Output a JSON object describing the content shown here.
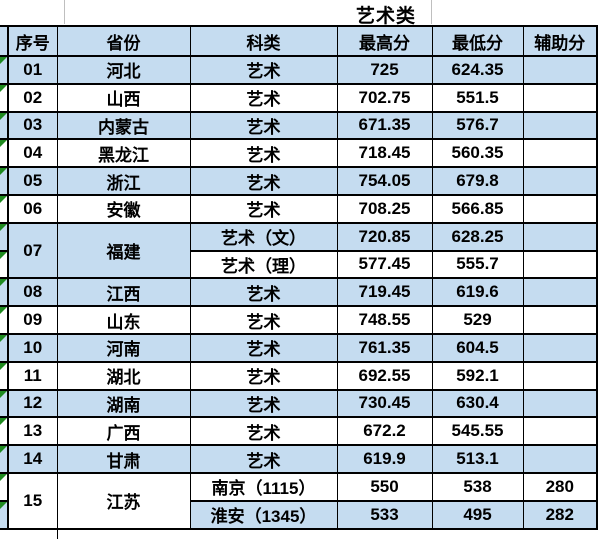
{
  "title": "艺术类",
  "columns": [
    "序号",
    "省份",
    "科类",
    "最高分",
    "最低分",
    "辅助分"
  ],
  "colors": {
    "row_blue": "#c5dcf0",
    "row_white": "#ffffff",
    "border_black": "#000000",
    "triangle_green": "#1f8a1f",
    "gridline_gray": "#bfbfbf"
  },
  "rows": [
    {
      "no": "01",
      "province": "河北",
      "subs": [
        {
          "category": "艺术",
          "high": "725",
          "low": "624.35",
          "aux": "",
          "shade": "blue"
        }
      ]
    },
    {
      "no": "02",
      "province": "山西",
      "subs": [
        {
          "category": "艺术",
          "high": "702.75",
          "low": "551.5",
          "aux": "",
          "shade": "white"
        }
      ]
    },
    {
      "no": "03",
      "province": "内蒙古",
      "subs": [
        {
          "category": "艺术",
          "high": "671.35",
          "low": "576.7",
          "aux": "",
          "shade": "blue"
        }
      ]
    },
    {
      "no": "04",
      "province": "黑龙江",
      "subs": [
        {
          "category": "艺术",
          "high": "718.45",
          "low": "560.35",
          "aux": "",
          "shade": "white"
        }
      ]
    },
    {
      "no": "05",
      "province": "浙江",
      "subs": [
        {
          "category": "艺术",
          "high": "754.05",
          "low": "679.8",
          "aux": "",
          "shade": "blue"
        }
      ]
    },
    {
      "no": "06",
      "province": "安徽",
      "subs": [
        {
          "category": "艺术",
          "high": "708.25",
          "low": "566.85",
          "aux": "",
          "shade": "white"
        }
      ]
    },
    {
      "no": "07",
      "province": "福建",
      "subs": [
        {
          "category": "艺术（文）",
          "high": "720.85",
          "low": "628.25",
          "aux": "",
          "shade": "blue"
        },
        {
          "category": "艺术（理）",
          "high": "577.45",
          "low": "555.7",
          "aux": "",
          "shade": "white"
        }
      ]
    },
    {
      "no": "08",
      "province": "江西",
      "subs": [
        {
          "category": "艺术",
          "high": "719.45",
          "low": "619.6",
          "aux": "",
          "shade": "blue"
        }
      ]
    },
    {
      "no": "09",
      "province": "山东",
      "subs": [
        {
          "category": "艺术",
          "high": "748.55",
          "low": "529",
          "aux": "",
          "shade": "white"
        }
      ]
    },
    {
      "no": "10",
      "province": "河南",
      "subs": [
        {
          "category": "艺术",
          "high": "761.35",
          "low": "604.5",
          "aux": "",
          "shade": "blue"
        }
      ]
    },
    {
      "no": "11",
      "province": "湖北",
      "subs": [
        {
          "category": "艺术",
          "high": "692.55",
          "low": "592.1",
          "aux": "",
          "shade": "white"
        }
      ]
    },
    {
      "no": "12",
      "province": "湖南",
      "subs": [
        {
          "category": "艺术",
          "high": "730.45",
          "low": "630.4",
          "aux": "",
          "shade": "blue"
        }
      ]
    },
    {
      "no": "13",
      "province": "广西",
      "subs": [
        {
          "category": "艺术",
          "high": "672.2",
          "low": "545.55",
          "aux": "",
          "shade": "white"
        }
      ]
    },
    {
      "no": "14",
      "province": "甘肃",
      "subs": [
        {
          "category": "艺术",
          "high": "619.9",
          "low": "513.1",
          "aux": "",
          "shade": "blue"
        }
      ]
    },
    {
      "no": "15",
      "province": "江苏",
      "subs": [
        {
          "category": "南京（1115）",
          "high": "550",
          "low": "538",
          "aux": "280",
          "shade": "white"
        },
        {
          "category": "淮安（1345）",
          "high": "533",
          "low": "495",
          "aux": "282",
          "shade": "blue"
        }
      ]
    }
  ]
}
